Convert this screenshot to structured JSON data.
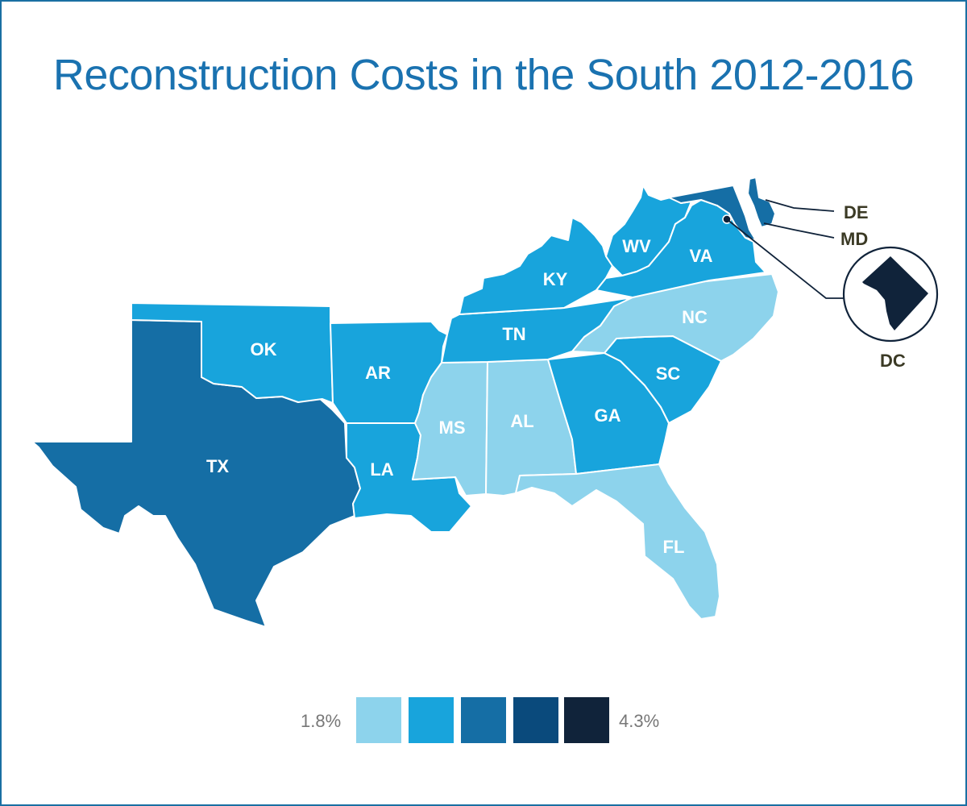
{
  "title": "Reconstruction Costs in the South 2012-2016",
  "legend": {
    "min_label": "1.8%",
    "max_label": "4.3%",
    "colors": [
      "#8dd3ec",
      "#18a4dc",
      "#156ea5",
      "#0a4a7c",
      "#10233a"
    ]
  },
  "states": [
    {
      "abbr": "TX",
      "level": 3
    },
    {
      "abbr": "OK",
      "level": 2
    },
    {
      "abbr": "AR",
      "level": 2
    },
    {
      "abbr": "LA",
      "level": 2
    },
    {
      "abbr": "MS",
      "level": 1
    },
    {
      "abbr": "AL",
      "level": 1
    },
    {
      "abbr": "GA",
      "level": 2
    },
    {
      "abbr": "FL",
      "level": 1
    },
    {
      "abbr": "SC",
      "level": 2
    },
    {
      "abbr": "NC",
      "level": 1
    },
    {
      "abbr": "TN",
      "level": 2
    },
    {
      "abbr": "KY",
      "level": 2
    },
    {
      "abbr": "WV",
      "level": 2
    },
    {
      "abbr": "VA",
      "level": 2
    },
    {
      "abbr": "MD",
      "level": 3
    },
    {
      "abbr": "DE",
      "level": 3
    },
    {
      "abbr": "DC",
      "level": 5
    }
  ]
}
